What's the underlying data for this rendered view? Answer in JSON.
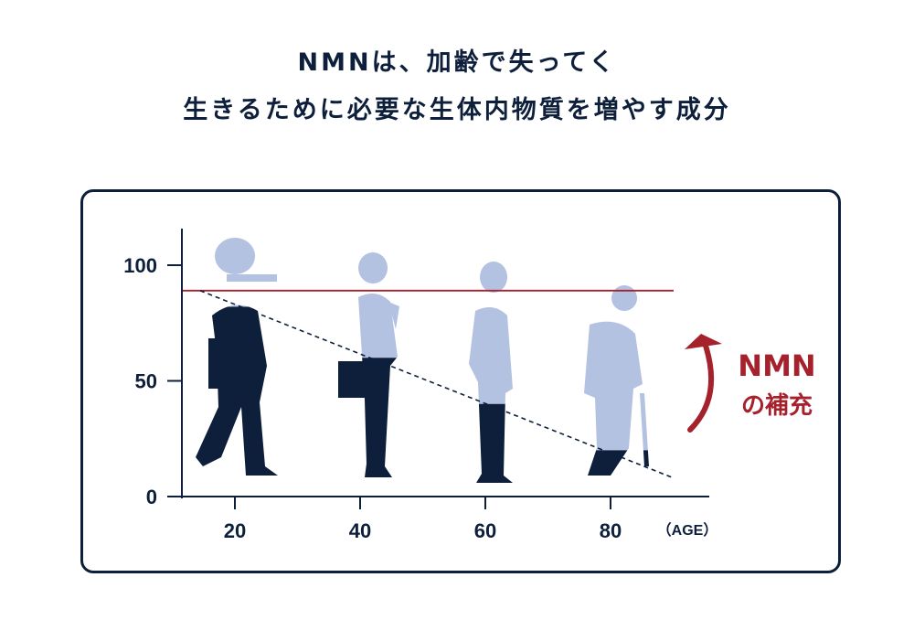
{
  "header": {
    "title_line1": "NMNは、加齢で失ってく",
    "title_line2": "生きるために必要な生体内物質を増やす成分"
  },
  "chart_data": {
    "type": "line",
    "x_unit_label": "（AGE）",
    "x_ticks": [
      20,
      40,
      60,
      80
    ],
    "y_ticks": [
      0,
      50,
      100
    ],
    "xlim": [
      12,
      90
    ],
    "ylim": [
      0,
      115
    ],
    "series": [
      {
        "style": "solid",
        "color": "#a5222d",
        "x": [
          12,
          90
        ],
        "y": [
          89,
          89
        ]
      },
      {
        "style": "dashed",
        "color": "#0e1f3b",
        "x": [
          15,
          90
        ],
        "y": [
          89,
          8
        ]
      }
    ],
    "figures": [
      {
        "age": 20,
        "level": 82
      },
      {
        "age": 40,
        "level": 60
      },
      {
        "age": 60,
        "level": 40
      },
      {
        "age": 80,
        "level": 20
      }
    ],
    "annotation": {
      "line1": "NMN",
      "line2": "の補充",
      "color": "#a5222d"
    },
    "colors": {
      "figure_filled": "#0e1f3b",
      "figure_light": "#b4c2e2",
      "axis": "#0e1f3b"
    }
  }
}
